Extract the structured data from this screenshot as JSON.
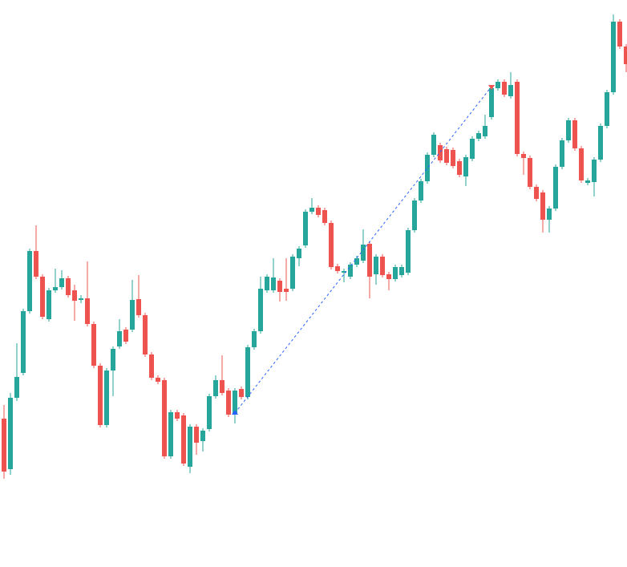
{
  "chart_data": {
    "type": "candlestick",
    "ylim": [
      0,
      702
    ],
    "up_color": "#26a69a",
    "down_color": "#ef5350",
    "series": [
      {
        "open": [
          180,
          117,
          206,
          237,
          314,
          389,
          357,
          304,
          340,
          344,
          355,
          340,
          328,
          330,
          298,
          246,
          172,
          240,
          270,
          291,
          291,
          329,
          309,
          260,
          231,
          228,
          133,
          188,
          184,
          120,
          170,
          152,
          167,
          208,
          228,
          215,
          185,
          217,
          207,
          269,
          289,
          340,
          340,
          352,
          342,
          342,
          380,
          396,
          438,
          443,
          440,
          424,
          370,
          362,
          357,
          372,
          377,
          398,
          360,
          382,
          360,
          354,
          359,
          362,
          415,
          452,
          476,
          509,
          521,
          516,
          515,
          501,
          482,
          504,
          529,
          532,
          556,
          592,
          600,
          582,
          600,
          510,
          505,
          469,
          462,
          428,
          442,
          494,
          527,
          552,
          517,
          474,
          475,
          503,
          545,
          587,
          675,
          644
        ],
        "high": [
          197,
          212,
          274,
          317,
          392,
          421,
          360,
          343,
          367,
          365,
          358,
          347,
          334,
          376,
          301,
          249,
          243,
          270,
          304,
          294,
          353,
          359,
          312,
          263,
          234,
          231,
          191,
          191,
          187,
          173,
          173,
          168,
          211,
          234,
          259,
          218,
          218,
          220,
          272,
          292,
          357,
          360,
          380,
          355,
          380,
          385,
          395,
          441,
          455,
          446,
          443,
          427,
          373,
          367,
          375,
          383,
          416,
          401,
          385,
          385,
          363,
          372,
          372,
          418,
          455,
          479,
          512,
          537,
          524,
          519,
          518,
          504,
          509,
          532,
          539,
          559,
          595,
          603,
          603,
          612,
          603,
          513,
          508,
          472,
          465,
          445,
          497,
          530,
          555,
          555,
          520,
          480,
          506,
          548,
          590,
          684,
          678,
          647
        ],
        "low": [
          105,
          110,
          202,
          234,
          311,
          354,
          304,
          301,
          337,
          341,
          331,
          302,
          324,
          295,
          243,
          169,
          169,
          208,
          267,
          273,
          288,
          306,
          257,
          228,
          223,
          130,
          130,
          177,
          121,
          112,
          135,
          139,
          164,
          205,
          209,
          182,
          174,
          204,
          204,
          266,
          286,
          337,
          337,
          326,
          327,
          339,
          370,
          393,
          435,
          431,
          421,
          366,
          361,
          350,
          354,
          369,
          374,
          330,
          347,
          356,
          340,
          351,
          356,
          359,
          412,
          449,
          473,
          506,
          499,
          496,
          492,
          481,
          470,
          501,
          526,
          529,
          553,
          589,
          581,
          579,
          507,
          484,
          466,
          451,
          412,
          412,
          439,
          491,
          524,
          514,
          474,
          471,
          457,
          500,
          542,
          584,
          641,
          612
        ],
        "close": [
          114,
          206,
          232,
          314,
          389,
          357,
          307,
          340,
          344,
          355,
          334,
          327,
          330,
          298,
          246,
          172,
          240,
          267,
          289,
          276,
          328,
          309,
          260,
          231,
          226,
          133,
          188,
          180,
          124,
          170,
          150,
          165,
          208,
          228,
          212,
          185,
          215,
          207,
          269,
          289,
          342,
          357,
          356,
          338,
          338,
          382,
          392,
          438,
          443,
          434,
          424,
          369,
          364,
          364,
          372,
          380,
          397,
          357,
          382,
          359,
          354,
          369,
          369,
          415,
          452,
          476,
          509,
          534,
          502,
          499,
          495,
          484,
          506,
          529,
          536,
          545,
          592,
          600,
          584,
          596,
          510,
          505,
          469,
          454,
          428,
          442,
          494,
          527,
          552,
          517,
          477,
          477,
          503,
          545,
          587,
          675,
          644,
          622
        ]
      }
    ]
  }
}
